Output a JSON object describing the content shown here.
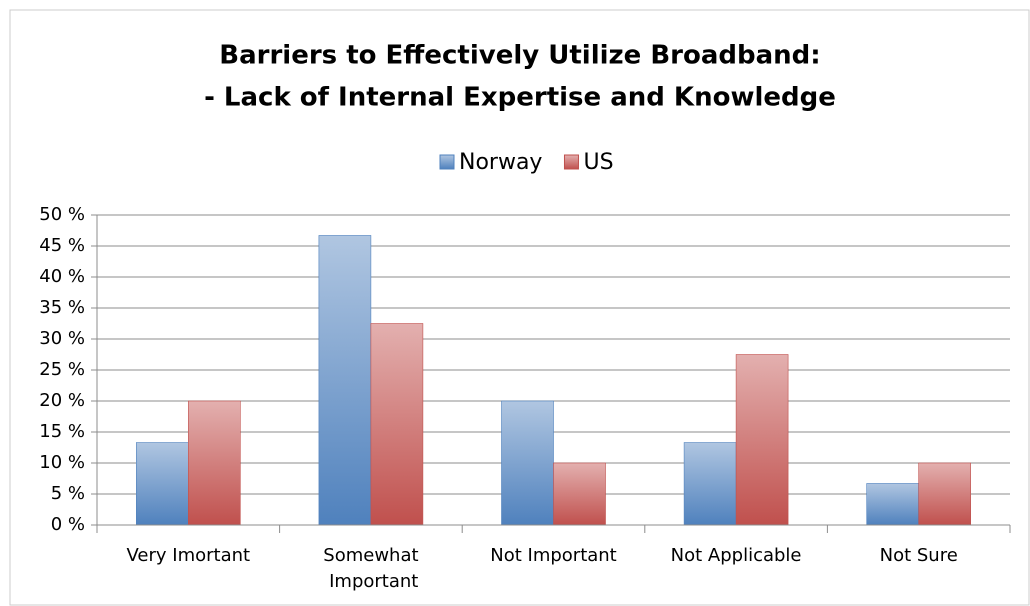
{
  "chart_data": {
    "type": "bar",
    "title": [
      "Barriers to Effectively Utilize Broadband:",
      "- Lack of Internal Expertise and Knowledge"
    ],
    "categories": [
      "Very Imortant",
      "Somewhat Important",
      "Not Important",
      "Not Applicable",
      "Not Sure"
    ],
    "series": [
      {
        "name": "Norway",
        "color": "#4f81bd",
        "values": [
          13.3,
          46.7,
          20,
          13.3,
          6.7
        ]
      },
      {
        "name": "US",
        "color": "#c0504d",
        "values": [
          20,
          32.5,
          10,
          27.5,
          10
        ]
      }
    ],
    "ylim": [
      0,
      50
    ],
    "yticks": [
      {
        "value": 0,
        "label": "0 %"
      },
      {
        "value": 5,
        "label": "5 %"
      },
      {
        "value": 10,
        "label": "10 %"
      },
      {
        "value": 15,
        "label": "15 %"
      },
      {
        "value": 20,
        "label": "20 %"
      },
      {
        "value": 25,
        "label": "25 %"
      },
      {
        "value": 30,
        "label": "30 %"
      },
      {
        "value": 35,
        "label": "35 %"
      },
      {
        "value": 40,
        "label": "40 %"
      },
      {
        "value": 45,
        "label": "45 %"
      },
      {
        "value": 50,
        "label": "50 %"
      }
    ],
    "grid": true,
    "legend": "top"
  }
}
